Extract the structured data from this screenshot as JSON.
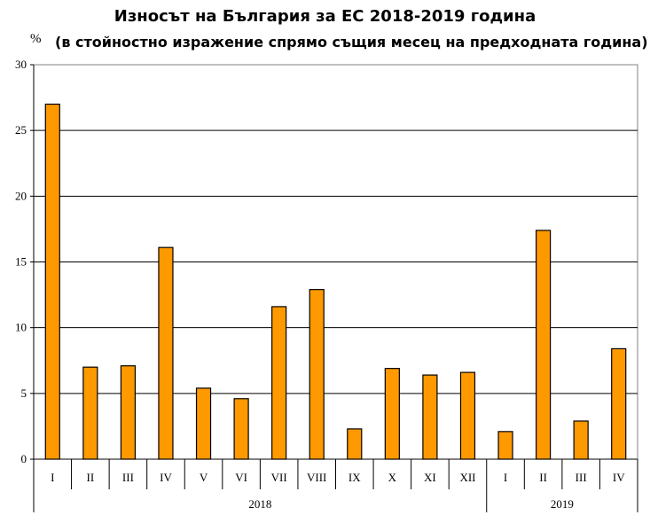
{
  "chart_data": {
    "type": "bar",
    "title": "Износът на България за ЕС 2018-2019 година",
    "subtitle": "(в стойностно изражение спрямо същия месец на предходната година)",
    "ylabel": "%",
    "ylim": [
      0,
      30
    ],
    "yticks": [
      0,
      5,
      10,
      15,
      20,
      25,
      30
    ],
    "grid": true,
    "bar_color": "#FF9900",
    "categories": [
      "I",
      "II",
      "III",
      "IV",
      "V",
      "VI",
      "VII",
      "VIII",
      "IX",
      "X",
      "XI",
      "XII",
      "I",
      "II",
      "III",
      "IV"
    ],
    "values": [
      27.0,
      7.0,
      7.1,
      16.1,
      5.4,
      4.6,
      11.6,
      12.9,
      2.3,
      6.9,
      6.4,
      6.6,
      2.1,
      17.4,
      2.9,
      8.4
    ],
    "groups": [
      {
        "label": "2018",
        "count": 12
      },
      {
        "label": "2019",
        "count": 4
      }
    ]
  }
}
